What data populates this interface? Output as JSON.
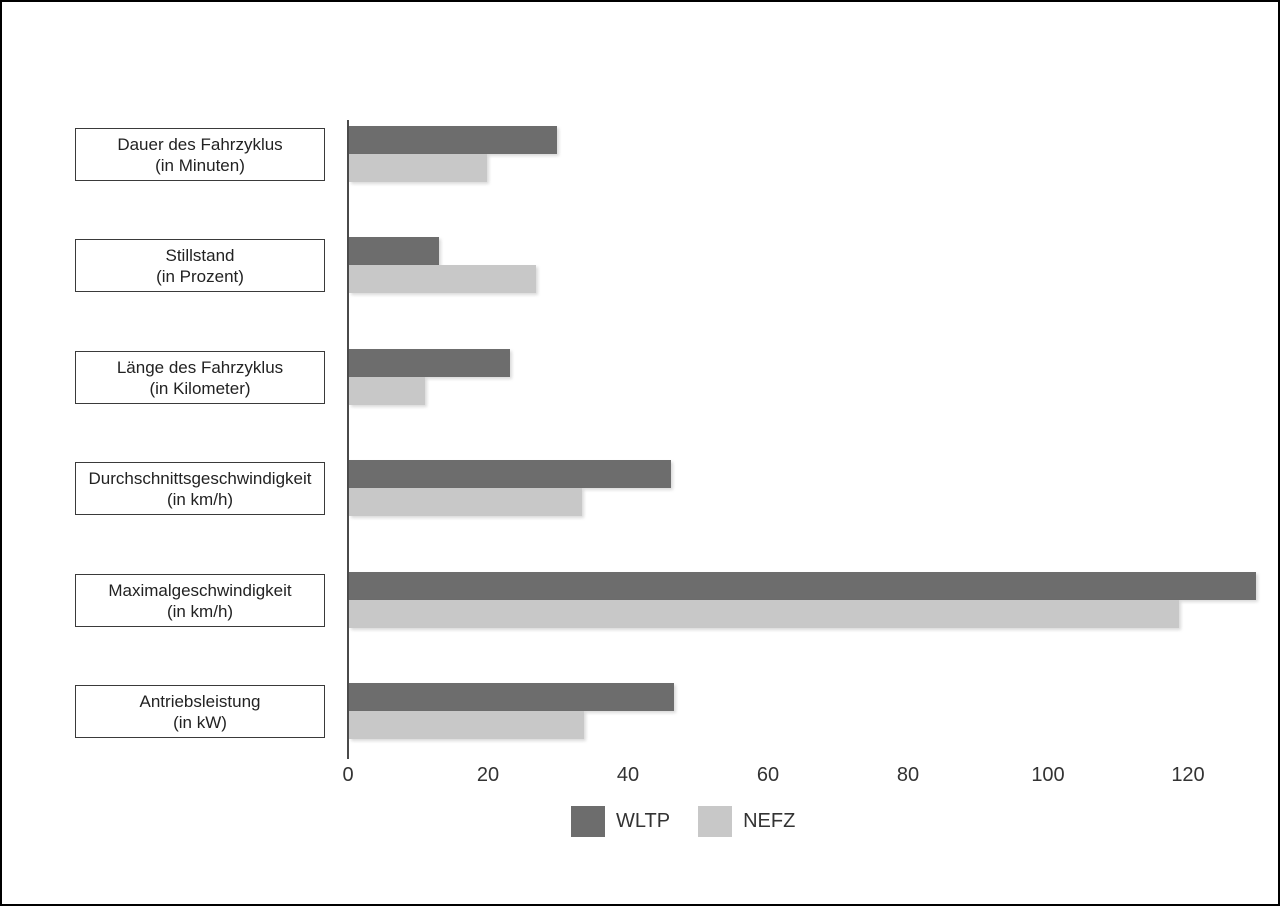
{
  "chart_data": {
    "type": "bar",
    "orientation": "horizontal",
    "categories": [
      {
        "label": "Dauer des Fahrzyklus",
        "unit": "(in Minuten)"
      },
      {
        "label": "Stillstand",
        "unit": "(in Prozent)"
      },
      {
        "label": "Länge des Fahrzyklus",
        "unit": "(in Kilometer)"
      },
      {
        "label": "Durchschnittsgeschwindigkeit",
        "unit": "(in km/h)"
      },
      {
        "label": "Maximalgeschwindigkeit",
        "unit": "(in km/h)"
      },
      {
        "label": "Antriebsleistung",
        "unit": "(in kW)"
      }
    ],
    "series": [
      {
        "name": "WLTP",
        "color": "#6d6d6d",
        "values": [
          30,
          13,
          23.25,
          46.5,
          131,
          47
        ]
      },
      {
        "name": "NEFZ",
        "color": "#c8c8c8",
        "values": [
          20,
          27,
          11,
          33.6,
          120,
          34
        ]
      }
    ],
    "x_ticks": [
      0,
      20,
      40,
      60,
      80,
      100,
      120
    ],
    "xlim": [
      0,
      120
    ],
    "grid": false,
    "legend_position": "bottom-center"
  }
}
